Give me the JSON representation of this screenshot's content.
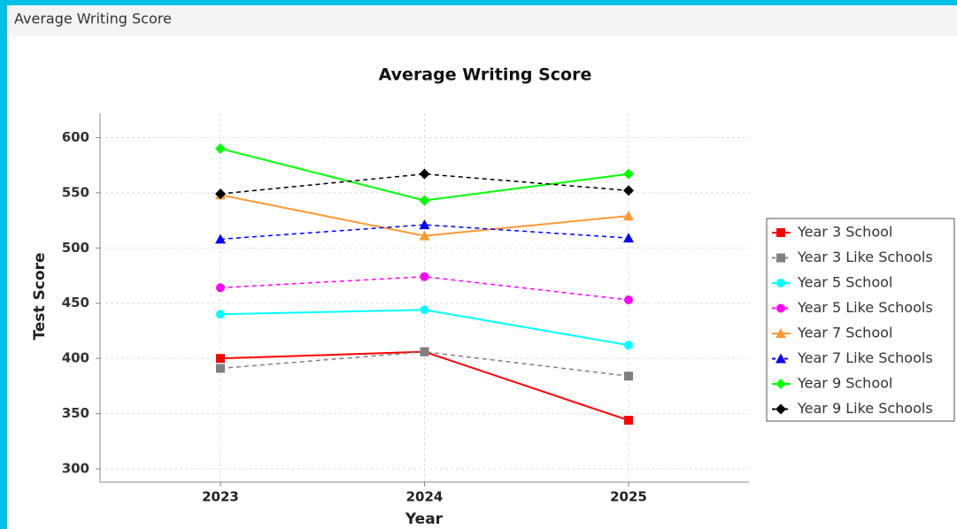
{
  "panel_title": "Average Writing Score",
  "chart_data": {
    "type": "line",
    "title": "Average Writing Score",
    "x_label": "Year",
    "y_label": "Test Score",
    "categories": [
      "2023",
      "2024",
      "2025"
    ],
    "ylim": [
      288,
      622
    ],
    "yticks": [
      300,
      350,
      400,
      450,
      500,
      550,
      600
    ],
    "grid": true,
    "legend": "right",
    "series": [
      {
        "name": "Year 3 School",
        "color": "#ff0000",
        "marker": "square",
        "dashed": false,
        "values": [
          400,
          406,
          344
        ]
      },
      {
        "name": "Year 3 Like Schools",
        "color": "#808080",
        "marker": "square",
        "dashed": true,
        "values": [
          391,
          406,
          384
        ]
      },
      {
        "name": "Year 5 School",
        "color": "#00ffff",
        "marker": "circle",
        "dashed": false,
        "values": [
          440,
          444,
          412
        ]
      },
      {
        "name": "Year 5 Like Schools",
        "color": "#ff00ff",
        "marker": "circle",
        "dashed": true,
        "values": [
          464,
          474,
          453
        ]
      },
      {
        "name": "Year 7 School",
        "color": "#ff9933",
        "marker": "triangle",
        "dashed": false,
        "values": [
          548,
          511,
          529
        ]
      },
      {
        "name": "Year 7 Like Schools",
        "color": "#0000ff",
        "marker": "triangle",
        "dashed": true,
        "values": [
          508,
          521,
          509
        ]
      },
      {
        "name": "Year 9 School",
        "color": "#00ff00",
        "marker": "diamond",
        "dashed": false,
        "values": [
          590,
          543,
          567
        ]
      },
      {
        "name": "Year 9 Like Schools",
        "color": "#000000",
        "marker": "diamond",
        "dashed": true,
        "values": [
          549,
          567,
          552
        ]
      }
    ]
  }
}
